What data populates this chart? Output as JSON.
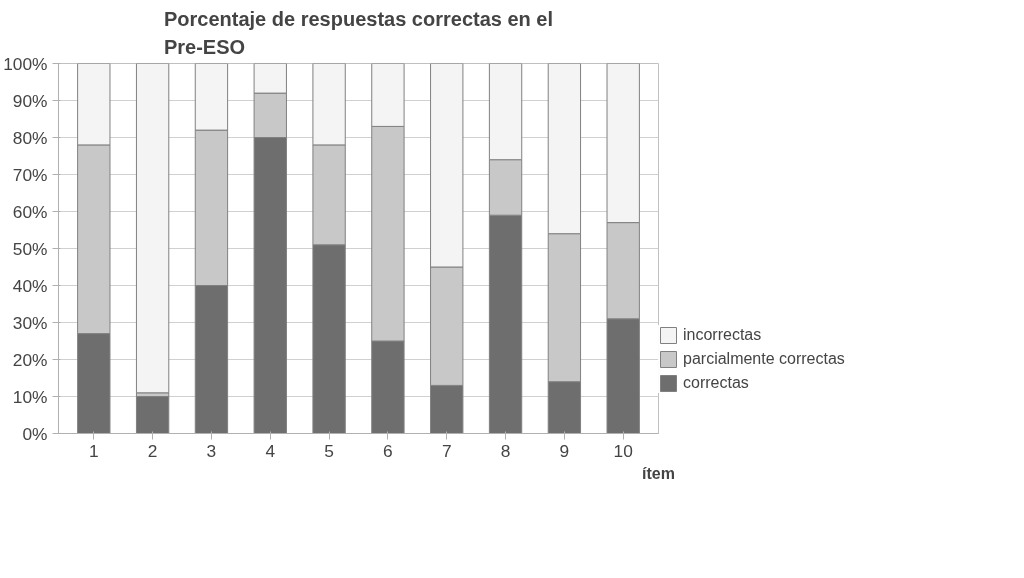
{
  "chart_data": {
    "type": "bar",
    "stacked": true,
    "title": "Porcentaje de respuestas correctas en el Pre-ESO",
    "xlabel": "ítem",
    "categories": [
      "1",
      "2",
      "3",
      "4",
      "5",
      "6",
      "7",
      "8",
      "9",
      "10"
    ],
    "series": [
      {
        "name": "correctas",
        "color": "#6e6e6e",
        "values": [
          27,
          10,
          40,
          80,
          51,
          25,
          13,
          59,
          14,
          31
        ]
      },
      {
        "name": "parcialmente correctas",
        "color": "#c8c8c8",
        "values": [
          51,
          1,
          42,
          12,
          27,
          58,
          32,
          15,
          40,
          26
        ]
      },
      {
        "name": "incorrectas",
        "color": "#f4f4f4",
        "values": [
          22,
          89,
          18,
          8,
          22,
          17,
          55,
          26,
          46,
          43
        ]
      }
    ],
    "ylim": [
      0,
      100
    ],
    "yticks": [
      {
        "value": 0,
        "label": "0%"
      },
      {
        "value": 10,
        "label": "10%"
      },
      {
        "value": 20,
        "label": "20%"
      },
      {
        "value": 30,
        "label": "30%"
      },
      {
        "value": 40,
        "label": "40%"
      },
      {
        "value": 50,
        "label": "50%"
      },
      {
        "value": 60,
        "label": "60%"
      },
      {
        "value": 70,
        "label": "70%"
      },
      {
        "value": 80,
        "label": "80%"
      },
      {
        "value": 90,
        "label": "90%"
      },
      {
        "value": 100,
        "label": "100%"
      }
    ],
    "grid": "y",
    "legend": "right"
  }
}
